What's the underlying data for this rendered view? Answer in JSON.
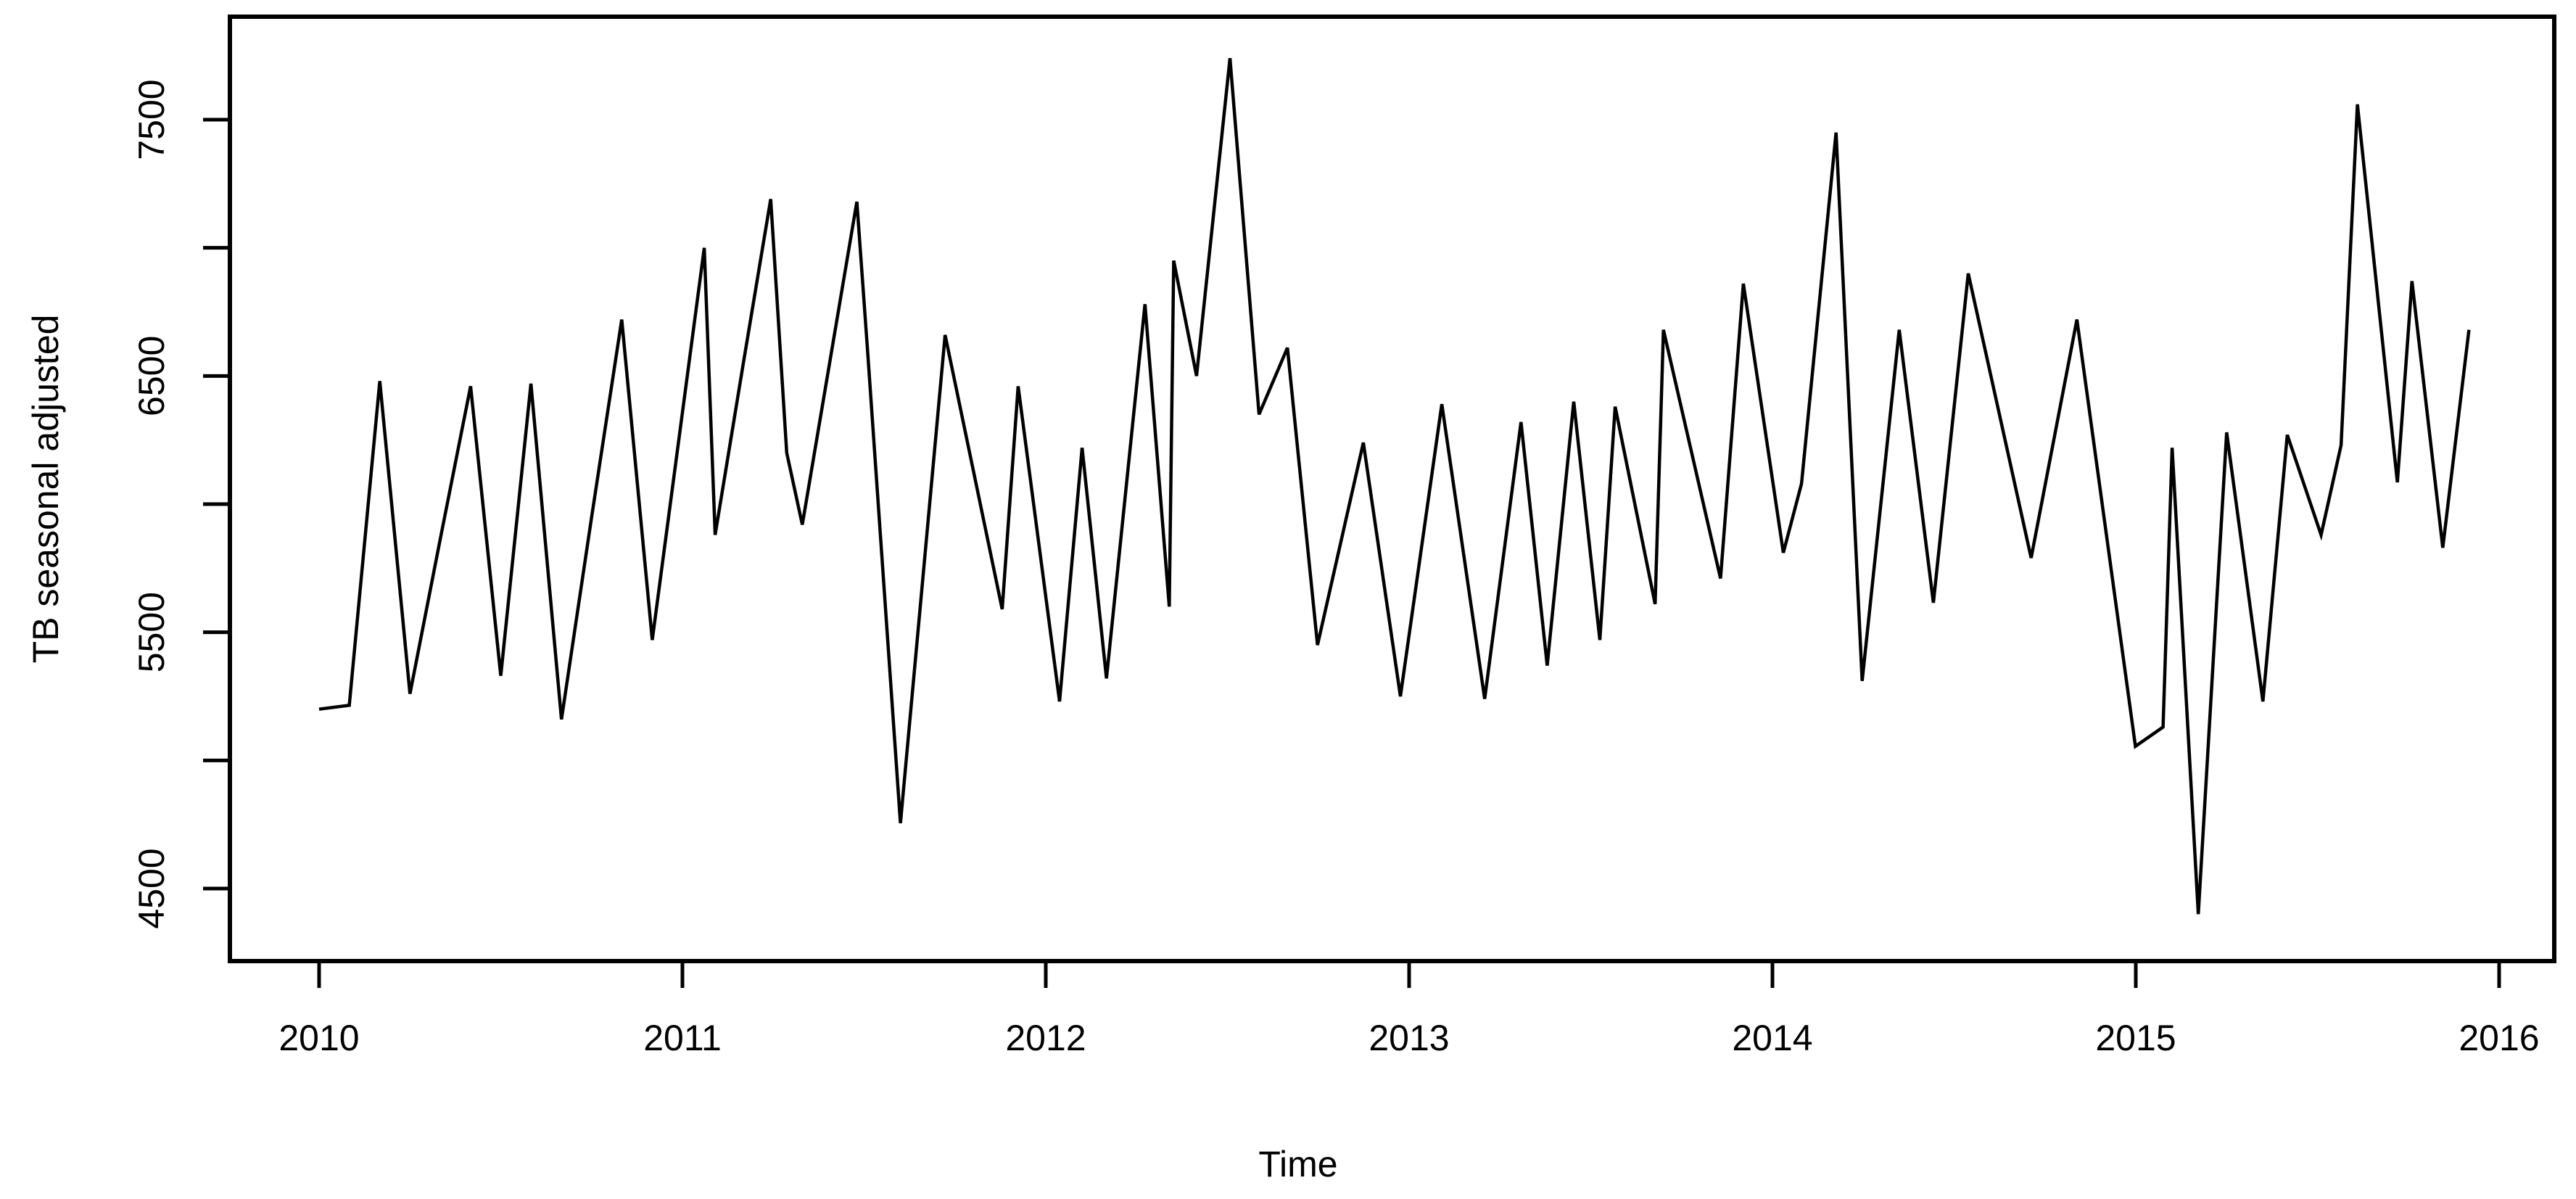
{
  "chart_data": {
    "type": "line",
    "title": "",
    "xlabel": "Time",
    "ylabel": "TB seasonal adjusted",
    "x_ticks": [
      2010,
      2011,
      2012,
      2013,
      2014,
      2015,
      2016
    ],
    "y_ticks_labeled": [
      4500,
      5500,
      6500,
      7500
    ],
    "y_ticks_unlabeled": [
      5000,
      6000,
      7000
    ],
    "xlim": [
      2009.75,
      2016.15
    ],
    "ylim": [
      4230,
      7900
    ],
    "grid": "off",
    "legend": "none",
    "line_color": "#000000",
    "background_color": "#ffffff",
    "series": [
      {
        "name": "TB seasonal adjusted",
        "points": [
          [
            2010.0,
            5200
          ],
          [
            2010.083,
            5215
          ],
          [
            2010.167,
            6480
          ],
          [
            2010.25,
            5260
          ],
          [
            2010.333,
            5860
          ],
          [
            2010.417,
            6460
          ],
          [
            2010.5,
            5330
          ],
          [
            2010.583,
            6470
          ],
          [
            2010.667,
            5160
          ],
          [
            2010.75,
            5950
          ],
          [
            2010.833,
            6720
          ],
          [
            2010.917,
            5470
          ],
          [
            2011.06,
            7000
          ],
          [
            2011.09,
            5880
          ],
          [
            2011.167,
            6545
          ],
          [
            2011.243,
            7190
          ],
          [
            2011.287,
            6200
          ],
          [
            2011.33,
            5920
          ],
          [
            2011.48,
            7180
          ],
          [
            2011.51,
            6590
          ],
          [
            2011.6,
            4755
          ],
          [
            2011.723,
            6660
          ],
          [
            2011.88,
            5590
          ],
          [
            2011.924,
            6460
          ],
          [
            2012.038,
            5230
          ],
          [
            2012.1,
            6220
          ],
          [
            2012.167,
            5320
          ],
          [
            2012.273,
            6780
          ],
          [
            2012.34,
            5600
          ],
          [
            2012.352,
            6950
          ],
          [
            2012.415,
            6500
          ],
          [
            2012.507,
            7740
          ],
          [
            2012.587,
            6350
          ],
          [
            2012.665,
            6610
          ],
          [
            2012.748,
            5450
          ],
          [
            2012.874,
            6240
          ],
          [
            2012.976,
            5250
          ],
          [
            2013.09,
            6390
          ],
          [
            2013.208,
            5240
          ],
          [
            2013.308,
            6320
          ],
          [
            2013.38,
            5370
          ],
          [
            2013.453,
            6400
          ],
          [
            2013.525,
            5470
          ],
          [
            2013.567,
            6380
          ],
          [
            2013.677,
            5610
          ],
          [
            2013.7,
            6680
          ],
          [
            2013.857,
            5710
          ],
          [
            2013.92,
            6860
          ],
          [
            2014.03,
            5810
          ],
          [
            2014.08,
            6080
          ],
          [
            2014.175,
            7450
          ],
          [
            2014.247,
            5310
          ],
          [
            2014.349,
            6680
          ],
          [
            2014.443,
            5615
          ],
          [
            2014.539,
            6900
          ],
          [
            2014.712,
            5790
          ],
          [
            2014.838,
            6720
          ],
          [
            2014.999,
            5055
          ],
          [
            2015.075,
            5130
          ],
          [
            2015.1,
            6220
          ],
          [
            2015.172,
            4400
          ],
          [
            2015.25,
            6280
          ],
          [
            2015.35,
            5230
          ],
          [
            2015.417,
            6270
          ],
          [
            2015.51,
            5880
          ],
          [
            2015.565,
            6230
          ],
          [
            2015.61,
            7560
          ],
          [
            2015.72,
            6085
          ],
          [
            2015.76,
            6870
          ],
          [
            2015.845,
            5830
          ],
          [
            2015.917,
            6680
          ]
        ]
      }
    ]
  }
}
